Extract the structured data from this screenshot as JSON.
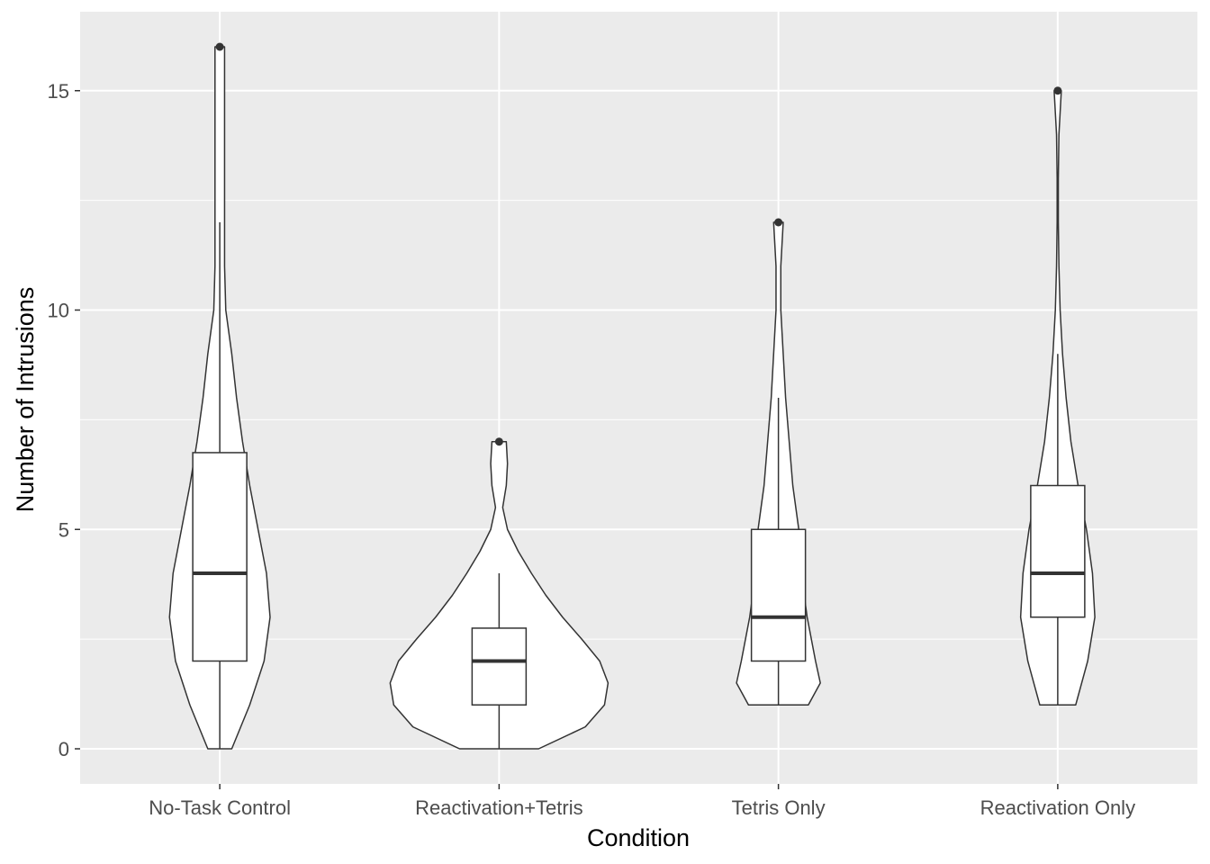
{
  "chart_data": {
    "type": "violin",
    "xlabel": "Condition",
    "ylabel": "Number of Intrusions",
    "ylim": [
      -0.8,
      16.8
    ],
    "yticks": [
      0,
      5,
      10,
      15
    ],
    "ytick_labels": [
      "0",
      "5",
      "10",
      "15"
    ],
    "grid": true,
    "categories": [
      "No-Task Control",
      "Reactivation+Tetris",
      "Tetris Only",
      "Reactivation Only"
    ],
    "groups": [
      {
        "name": "No-Task Control",
        "box": {
          "lower_whisker": 0,
          "q1": 2,
          "median": 4,
          "q3": 6.75,
          "upper_whisker": 12
        },
        "outliers": [
          16
        ],
        "violin_profile": [
          [
            0,
            0.1
          ],
          [
            1,
            0.25
          ],
          [
            2,
            0.37
          ],
          [
            3,
            0.42
          ],
          [
            4,
            0.39
          ],
          [
            5,
            0.32
          ],
          [
            6,
            0.25
          ],
          [
            7,
            0.19
          ],
          [
            8,
            0.14
          ],
          [
            9,
            0.1
          ],
          [
            10,
            0.05
          ],
          [
            11,
            0.04
          ],
          [
            12,
            0.04
          ],
          [
            13,
            0.04
          ],
          [
            14,
            0.04
          ],
          [
            15,
            0.04
          ],
          [
            16,
            0.04
          ]
        ]
      },
      {
        "name": "Reactivation+Tetris",
        "box": {
          "lower_whisker": 0,
          "q1": 1,
          "median": 2,
          "q3": 2.75,
          "upper_whisker": 4
        },
        "outliers": [
          7
        ],
        "violin_profile": [
          [
            0,
            0.33
          ],
          [
            0.5,
            0.72
          ],
          [
            1,
            0.88
          ],
          [
            1.5,
            0.91
          ],
          [
            2,
            0.84
          ],
          [
            2.5,
            0.69
          ],
          [
            3,
            0.53
          ],
          [
            3.5,
            0.39
          ],
          [
            4,
            0.27
          ],
          [
            4.5,
            0.16
          ],
          [
            5,
            0.07
          ],
          [
            5.5,
            0.03
          ],
          [
            6,
            0.06
          ],
          [
            6.5,
            0.07
          ],
          [
            7,
            0.06
          ]
        ]
      },
      {
        "name": "Tetris Only",
        "box": {
          "lower_whisker": 1,
          "q1": 2,
          "median": 3,
          "q3": 5,
          "upper_whisker": 8
        },
        "outliers": [
          12
        ],
        "violin_profile": [
          [
            1,
            0.25
          ],
          [
            1.5,
            0.35
          ],
          [
            2,
            0.31
          ],
          [
            3,
            0.24
          ],
          [
            4,
            0.19
          ],
          [
            5,
            0.17
          ],
          [
            6,
            0.12
          ],
          [
            7,
            0.09
          ],
          [
            8,
            0.06
          ],
          [
            9,
            0.04
          ],
          [
            10,
            0.02
          ],
          [
            11,
            0.02
          ],
          [
            12,
            0.04
          ]
        ]
      },
      {
        "name": "Reactivation Only",
        "box": {
          "lower_whisker": 1,
          "q1": 3,
          "median": 4,
          "q3": 6,
          "upper_whisker": 9
        },
        "outliers": [
          15
        ],
        "violin_profile": [
          [
            1,
            0.15
          ],
          [
            2,
            0.25
          ],
          [
            3,
            0.31
          ],
          [
            4,
            0.29
          ],
          [
            5,
            0.24
          ],
          [
            6,
            0.17
          ],
          [
            7,
            0.11
          ],
          [
            8,
            0.07
          ],
          [
            9,
            0.04
          ],
          [
            10,
            0.02
          ],
          [
            11,
            0.01
          ],
          [
            12,
            0.005
          ],
          [
            13,
            0.005
          ],
          [
            14,
            0.01
          ],
          [
            15,
            0.03
          ]
        ]
      }
    ]
  }
}
